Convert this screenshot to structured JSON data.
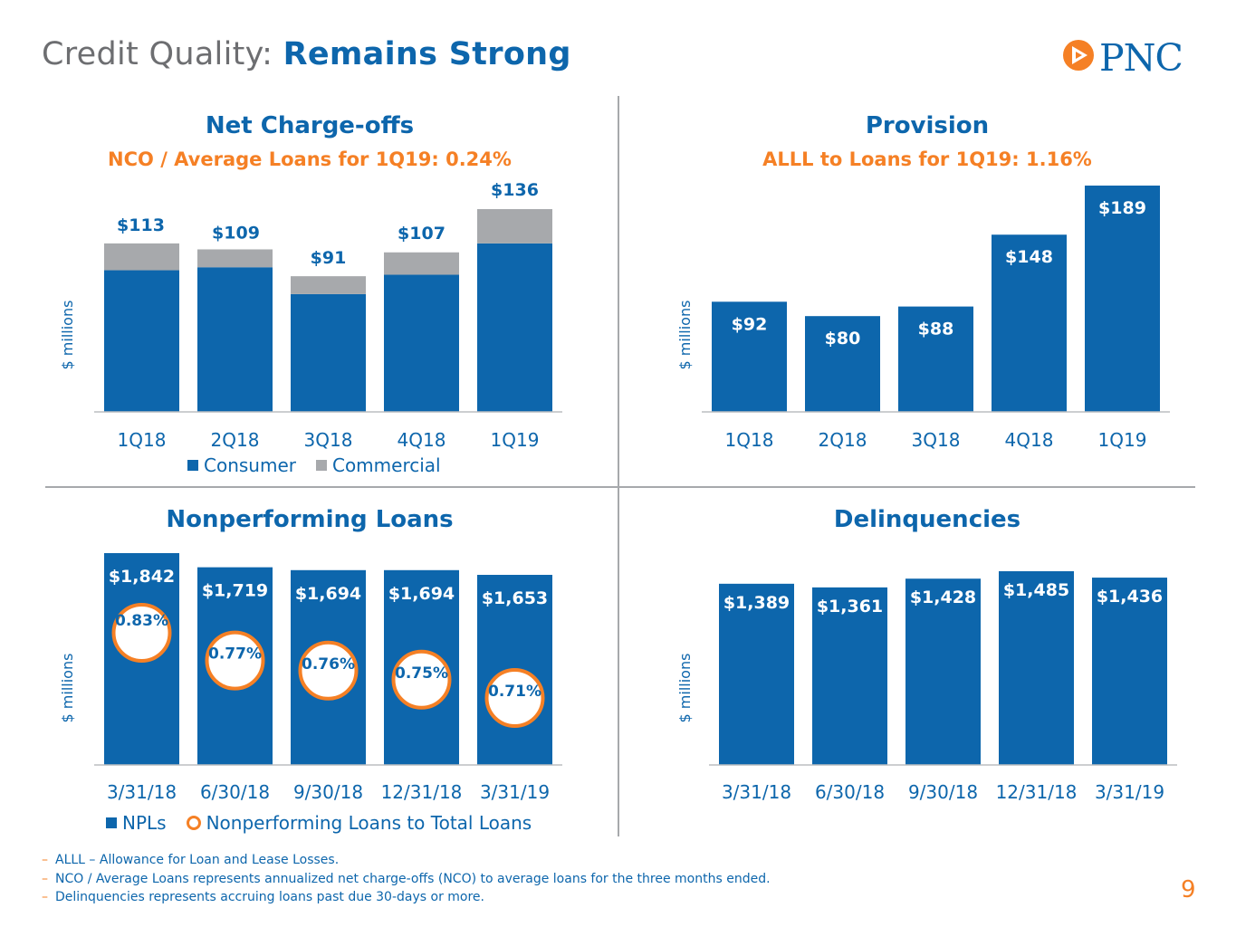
{
  "header": {
    "title_light": "Credit Quality: ",
    "title_bold": "Remains Strong",
    "logo_text": "PNC",
    "logo_icon": "pnc-logo-icon"
  },
  "colors": {
    "blue": "#0d66ac",
    "gray": "#a7a9ac",
    "orange": "#f58025"
  },
  "panels": {
    "nco": {
      "title": "Net Charge-offs",
      "subtitle": "NCO / Average Loans for 1Q19: 0.24%",
      "ylabel": "$ millions"
    },
    "provision": {
      "title": "Provision",
      "subtitle": "ALLL to Loans for 1Q19: 1.16%",
      "ylabel": "$ millions"
    },
    "npl": {
      "title": "Nonperforming Loans",
      "ylabel": "$ millions"
    },
    "delinq": {
      "title": "Delinquencies",
      "ylabel": "$ millions"
    }
  },
  "legends": {
    "nco": {
      "consumer": "Consumer",
      "commercial": "Commercial"
    },
    "npl": {
      "npls": "NPLs",
      "ratio": "Nonperforming Loans to Total Loans"
    }
  },
  "chart_data": [
    {
      "id": "nco",
      "type": "bar",
      "stacked": true,
      "title": "Net Charge-offs",
      "ylabel": "$ millions",
      "categories": [
        "1Q18",
        "2Q18",
        "3Q18",
        "4Q18",
        "1Q19"
      ],
      "series": [
        {
          "name": "Consumer",
          "values": [
            95,
            97,
            79,
            92,
            113
          ]
        },
        {
          "name": "Commercial",
          "values": [
            18,
            12,
            12,
            15,
            23
          ]
        }
      ],
      "totals": [
        "$113",
        "$109",
        "$91",
        "$107",
        "$136"
      ],
      "ylim": [
        0,
        136
      ]
    },
    {
      "id": "provision",
      "type": "bar",
      "title": "Provision",
      "ylabel": "$ millions",
      "categories": [
        "1Q18",
        "2Q18",
        "3Q18",
        "4Q18",
        "1Q19"
      ],
      "values": [
        92,
        80,
        88,
        148,
        189
      ],
      "labels": [
        "$92",
        "$80",
        "$88",
        "$148",
        "$189"
      ],
      "ylim": [
        0,
        189
      ]
    },
    {
      "id": "npl",
      "type": "bar",
      "title": "Nonperforming Loans",
      "ylabel": "$ millions",
      "categories": [
        "3/31/18",
        "6/30/18",
        "9/30/18",
        "12/31/18",
        "3/31/19"
      ],
      "values": [
        1842,
        1719,
        1694,
        1694,
        1653
      ],
      "labels": [
        "$1,842",
        "$1,719",
        "$1,694",
        "$1,694",
        "$1,653"
      ],
      "ratio_name": "Nonperforming Loans to Total Loans",
      "ratios": [
        0.83,
        0.77,
        0.76,
        0.75,
        0.71
      ],
      "ratio_labels": [
        "0.83%",
        "0.77%",
        "0.76%",
        "0.75%",
        "0.71%"
      ],
      "ylim": [
        0,
        1842
      ]
    },
    {
      "id": "delinq",
      "type": "bar",
      "title": "Delinquencies",
      "ylabel": "$ millions",
      "categories": [
        "3/31/18",
        "6/30/18",
        "9/30/18",
        "12/31/18",
        "3/31/19"
      ],
      "values": [
        1389,
        1361,
        1428,
        1485,
        1436
      ],
      "labels": [
        "$1,389",
        "$1,361",
        "$1,428",
        "$1,485",
        "$1,436"
      ],
      "ylim": [
        0,
        1485
      ]
    }
  ],
  "footnotes": [
    "ALLL – Allowance for Loan and Lease Losses.",
    "NCO / Average Loans represents annualized net charge-offs (NCO) to average loans for the three months ended.",
    "Delinquencies represents accruing loans past due 30-days or more."
  ],
  "footnote_dash": "–",
  "page_number": "9"
}
